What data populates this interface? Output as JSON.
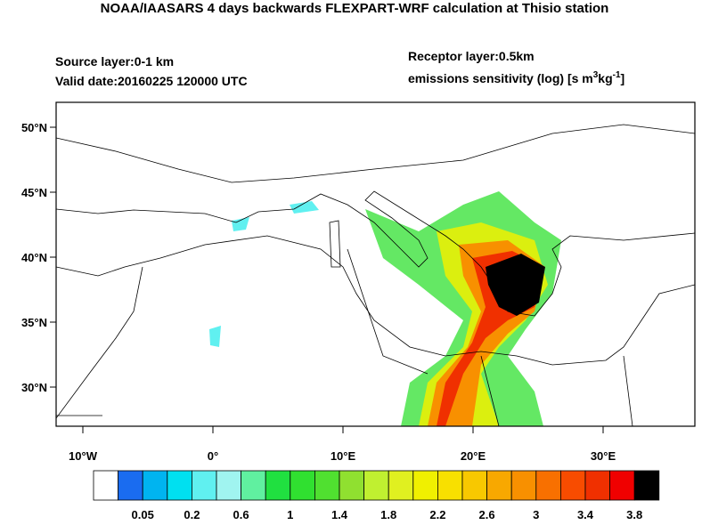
{
  "header": {
    "title": "NOAA/IAASARS 4 days backwards FLEXPART-WRF calculation at Thisio station",
    "source_layer": "Source layer:0-1 km",
    "valid_date": "Valid date:20160225 120000 UTC",
    "receptor_layer": "Receptor layer:0.5km",
    "units": [
      "emissions sensitivity (log) [s m",
      "3",
      "kg",
      "-1",
      "]"
    ]
  },
  "map": {
    "lat_labels": [
      "50°N",
      "45°N",
      "40°N",
      "35°N",
      "30°N"
    ],
    "lon_labels": [
      "10°W",
      "0°",
      "10°E",
      "20°E",
      "30°E"
    ]
  },
  "colorbar": {
    "colors": [
      "#ffffff",
      "#1a6cf0",
      "#00b4f0",
      "#00e0f0",
      "#60f0f0",
      "#a0f4f0",
      "#60f0a0",
      "#20e040",
      "#30e030",
      "#50e030",
      "#90e030",
      "#c0f030",
      "#e0f020",
      "#f0f000",
      "#f8e000",
      "#f8c800",
      "#f8a800",
      "#f89000",
      "#f87000",
      "#f84c00",
      "#f03000",
      "#f00000",
      "#000000"
    ],
    "labels": [
      "0.05",
      "0.2",
      "0.6",
      "1",
      "1.4",
      "1.8",
      "2.2",
      "2.6",
      "3",
      "3.4",
      "3.8"
    ]
  }
}
